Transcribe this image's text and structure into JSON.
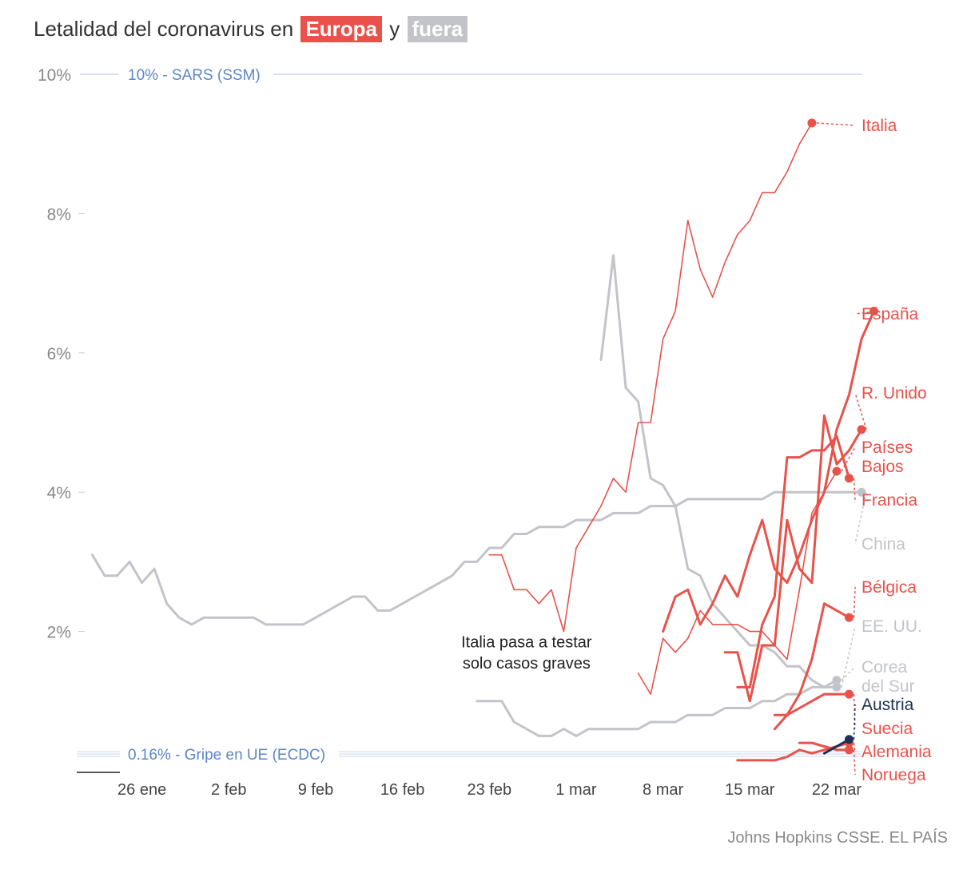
{
  "title": {
    "prefix": "Letalidad del coronavirus en",
    "europe_tag": "Europa",
    "joiner": "y",
    "outside_tag": "fuera"
  },
  "colors": {
    "europe": "#e8524a",
    "outside": "#c2c4ca",
    "austria": "#1b2f57",
    "reference": "#5b86c9",
    "reference_line": "#c9d6ec",
    "axis_text": "#888888",
    "annotation": "#222222"
  },
  "source": "Johns Hopkins CSSE. EL PAÍS",
  "chart_data": {
    "type": "line",
    "title": "Letalidad del coronavirus en Europa y fuera",
    "x_axis": {
      "ticks": [
        "2020-01-26",
        "2020-02-02",
        "2020-02-09",
        "2020-02-16",
        "2020-02-23",
        "2020-03-01",
        "2020-03-08",
        "2020-03-15",
        "2020-03-22"
      ],
      "tick_labels": [
        "26 ene",
        "2 feb",
        "9 feb",
        "16 feb",
        "23 feb",
        "1 mar",
        "8 mar",
        "15 mar",
        "22 mar"
      ],
      "range": [
        "2020-01-21",
        "2020-03-24"
      ]
    },
    "y_axis": {
      "range": [
        0,
        10
      ],
      "ticks": [
        2,
        4,
        6,
        8,
        10
      ],
      "tick_labels": [
        "2%",
        "4%",
        "6%",
        "8%",
        "10%"
      ],
      "grid": false
    },
    "reference_lines": [
      {
        "value": 10,
        "label": "10% - SARS (SSM)"
      },
      {
        "value": 0.16,
        "label": "0.16% - Gripe en UE (ECDC)"
      }
    ],
    "annotations": [
      {
        "text": "Italia pasa a testar",
        "x": "2020-02-26",
        "y": 2.0
      },
      {
        "text": "solo casos graves",
        "x": "2020-02-26",
        "y": 1.7
      }
    ],
    "series": [
      {
        "name": "China",
        "group": "outside",
        "label_lines": [
          "China"
        ],
        "x_start": "2020-01-22",
        "values": [
          3.1,
          2.8,
          2.8,
          3.0,
          2.7,
          2.9,
          2.4,
          2.2,
          2.1,
          2.2,
          2.2,
          2.2,
          2.2,
          2.2,
          2.1,
          2.1,
          2.1,
          2.1,
          2.2,
          2.3,
          2.4,
          2.5,
          2.5,
          2.3,
          2.3,
          2.4,
          2.5,
          2.6,
          2.7,
          2.8,
          3.0,
          3.0,
          3.2,
          3.2,
          3.4,
          3.4,
          3.5,
          3.5,
          3.5,
          3.6,
          3.6,
          3.6,
          3.7,
          3.7,
          3.7,
          3.8,
          3.8,
          3.8,
          3.9,
          3.9,
          3.9,
          3.9,
          3.9,
          3.9,
          3.9,
          4.0,
          4.0,
          4.0,
          4.0,
          4.0,
          4.0,
          4.0,
          4.0
        ]
      },
      {
        "name": "EE. UU.",
        "group": "outside",
        "label_lines": [
          "EE. UU."
        ],
        "x_start": "2020-03-03",
        "values": [
          5.9,
          7.4,
          5.5,
          5.3,
          4.2,
          4.1,
          3.8,
          2.9,
          2.8,
          2.4,
          2.2,
          2.0,
          1.8,
          1.8,
          1.7,
          1.5,
          1.5,
          1.3,
          1.2,
          1.2
        ]
      },
      {
        "name": "Corea del Sur",
        "group": "outside",
        "label_lines": [
          "Corea",
          "del Sur"
        ],
        "x_start": "2020-02-22",
        "values": [
          1.0,
          1.0,
          1.0,
          0.7,
          0.6,
          0.5,
          0.5,
          0.6,
          0.5,
          0.6,
          0.6,
          0.6,
          0.6,
          0.6,
          0.7,
          0.7,
          0.7,
          0.8,
          0.8,
          0.8,
          0.9,
          0.9,
          0.9,
          1.0,
          1.0,
          1.1,
          1.1,
          1.2,
          1.2,
          1.3
        ]
      },
      {
        "name": "Italia",
        "group": "europe",
        "label_lines": [
          "Italia"
        ],
        "x_start": "2020-02-23",
        "values": [
          3.1,
          3.1,
          2.6,
          2.6,
          2.4,
          2.6,
          2.0,
          3.2,
          3.5,
          3.8,
          4.2,
          4.0,
          5.0,
          5.0,
          6.2,
          6.6,
          7.9,
          7.2,
          6.8,
          7.3,
          7.7,
          7.9,
          8.3,
          8.3,
          8.6,
          9.0,
          9.3
        ]
      },
      {
        "name": "España",
        "group": "europe",
        "label_lines": [
          "España"
        ],
        "x_start": "2020-03-08",
        "values": [
          2.0,
          2.5,
          2.6,
          2.1,
          2.4,
          2.8,
          2.5,
          3.1,
          3.6,
          2.9,
          2.7,
          3.1,
          3.6,
          4.0,
          4.9,
          5.4,
          6.2,
          6.6
        ]
      },
      {
        "name": "R. Unido",
        "group": "europe",
        "label_lines": [
          "R. Unido"
        ],
        "x_start": "2020-03-13",
        "values": [
          1.7,
          1.7,
          1.0,
          1.8,
          1.8,
          3.6,
          2.9,
          2.7,
          5.1,
          4.4,
          4.6,
          4.9
        ]
      },
      {
        "name": "Países Bajos",
        "group": "europe",
        "label_lines": [
          "Países",
          "Bajos"
        ],
        "x_start": "2020-03-06",
        "values": [
          1.4,
          1.1,
          1.9,
          1.7,
          1.9,
          2.3,
          2.1,
          2.1,
          2.1,
          2.0,
          2.0,
          1.8,
          1.6,
          2.6,
          3.7,
          4.0,
          4.3
        ]
      },
      {
        "name": "Francia",
        "group": "europe",
        "label_lines": [
          "Francia"
        ],
        "x_start": "2020-03-14",
        "values": [
          1.2,
          1.2,
          2.1,
          2.5,
          4.5,
          4.5,
          4.6,
          4.6,
          4.8,
          4.2
        ]
      },
      {
        "name": "Bélgica",
        "group": "europe",
        "label_lines": [
          "Bélgica"
        ],
        "x_start": "2020-03-17",
        "values": [
          0.8,
          0.8,
          1.1,
          1.6,
          2.4,
          2.3,
          2.2
        ]
      },
      {
        "name": "Suecia",
        "group": "europe",
        "label_lines": [
          "Suecia"
        ],
        "x_start": "2020-03-17",
        "values": [
          0.6,
          0.8,
          0.9,
          1.0,
          1.1,
          1.1,
          1.1
        ]
      },
      {
        "name": "Alemania",
        "group": "europe",
        "label_lines": [
          "Alemania"
        ],
        "x_start": "2020-03-14",
        "values": [
          0.15,
          0.15,
          0.15,
          0.15,
          0.2,
          0.3,
          0.25,
          0.3,
          0.35,
          0.4
        ]
      },
      {
        "name": "Noruega",
        "group": "europe",
        "label_lines": [
          "Noruega"
        ],
        "x_start": "2020-03-19",
        "values": [
          0.4,
          0.4,
          0.35,
          0.3,
          0.3
        ]
      },
      {
        "name": "Austria",
        "group": "austria",
        "label_lines": [
          "Austria"
        ],
        "x_start": "2020-03-21",
        "values": [
          0.25,
          0.35,
          0.45
        ]
      }
    ]
  }
}
